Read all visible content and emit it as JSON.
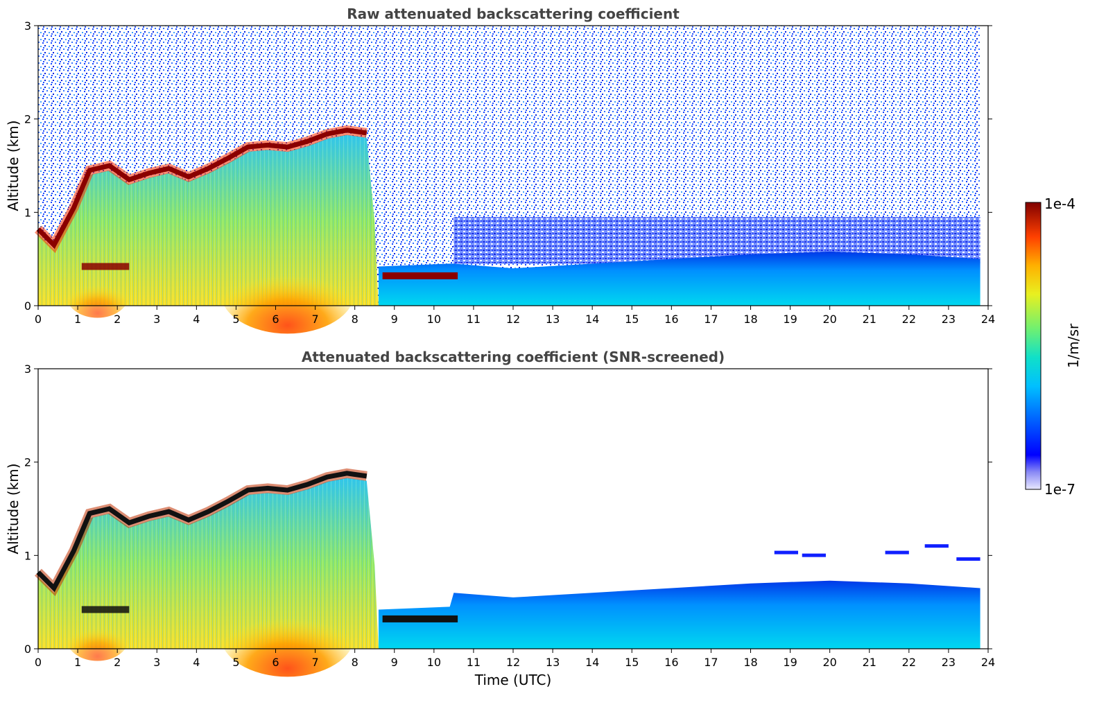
{
  "chart_data": [
    {
      "type": "heatmap",
      "title": "Raw attenuated backscattering coefficient",
      "xlabel": "",
      "ylabel": "Altitude (km)",
      "xlim": [
        0,
        24
      ],
      "ylim": [
        0,
        3
      ],
      "xticks": [
        "0",
        "1",
        "2",
        "3",
        "4",
        "5",
        "6",
        "7",
        "8",
        "9",
        "10",
        "11",
        "12",
        "13",
        "14",
        "15",
        "16",
        "17",
        "18",
        "19",
        "20",
        "21",
        "22",
        "23",
        "24"
      ],
      "yticks": [
        "0",
        "1",
        "2",
        "3"
      ],
      "data_extent_hours": [
        0,
        23.8
      ],
      "features": {
        "cloud_base": {
          "hours": [
            0.0,
            0.4,
            0.9,
            1.3,
            1.8,
            2.3,
            2.8,
            3.3,
            3.8,
            4.3,
            4.8,
            5.3,
            5.8,
            6.3,
            6.8,
            7.3,
            7.8,
            8.3
          ],
          "altitude_km": [
            0.82,
            0.65,
            1.05,
            1.45,
            1.5,
            1.35,
            1.42,
            1.47,
            1.38,
            1.47,
            1.58,
            1.7,
            1.72,
            1.7,
            1.76,
            1.84,
            1.88,
            1.85
          ]
        },
        "low_cloud_layer": {
          "hours": [
            8.7,
            10.6
          ],
          "altitude_km": 0.32
        },
        "boundary_layer_top": {
          "hours": [
            10.5,
            12,
            14,
            16,
            18,
            20,
            22,
            23.8
          ],
          "altitude_km": [
            0.45,
            0.4,
            0.45,
            0.5,
            0.55,
            0.58,
            0.55,
            0.5
          ]
        }
      }
    },
    {
      "type": "heatmap",
      "title": "Attenuated backscattering coefficient (SNR-screened)",
      "xlabel": "Time (UTC)",
      "ylabel": "Altitude (km)",
      "xlim": [
        0,
        24
      ],
      "ylim": [
        0,
        3
      ],
      "xticks": [
        "0",
        "1",
        "2",
        "3",
        "4",
        "5",
        "6",
        "7",
        "8",
        "9",
        "10",
        "11",
        "12",
        "13",
        "14",
        "15",
        "16",
        "17",
        "18",
        "19",
        "20",
        "21",
        "22",
        "23",
        "24"
      ],
      "yticks": [
        "0",
        "1",
        "2",
        "3"
      ],
      "data_extent_hours": [
        0,
        23.8
      ]
    }
  ],
  "colorbar": {
    "max_label": "1e-4",
    "min_label": "1e-7",
    "unit_label": "1/m/sr",
    "max_value": 0.0001,
    "min_value": 1e-07,
    "scale": "log"
  }
}
